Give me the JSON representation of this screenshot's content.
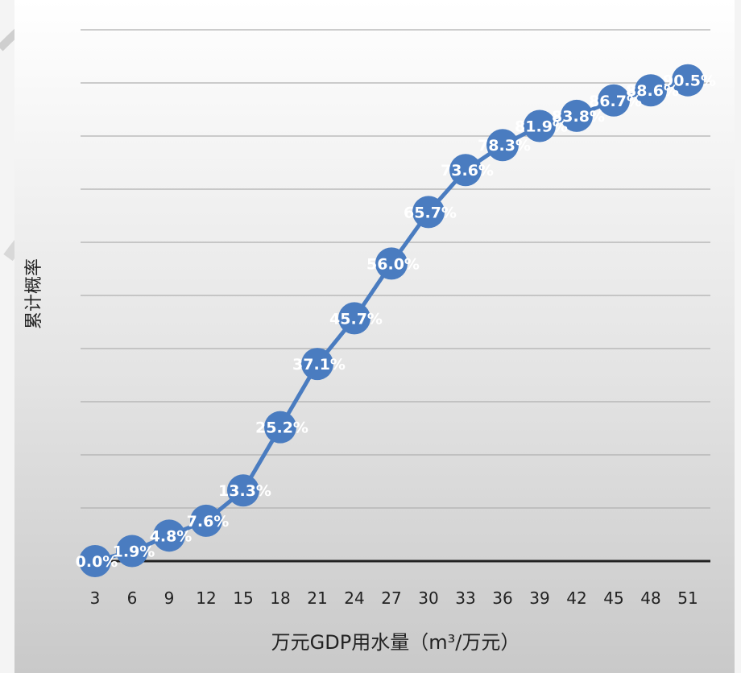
{
  "chart_data": {
    "type": "line",
    "ylabel": "累计概率",
    "xlabel": "万元GDP用水量（m³/万元）",
    "x": [
      3,
      6,
      9,
      12,
      15,
      18,
      21,
      24,
      27,
      30,
      33,
      36,
      39,
      42,
      45,
      48,
      51
    ],
    "x_tick_labels": [
      "3",
      "6",
      "9",
      "12",
      "15",
      "18",
      "21",
      "24",
      "27",
      "30",
      "33",
      "36",
      "39",
      "42",
      "45",
      "48",
      "51"
    ],
    "series": [
      {
        "values": [
          0.0,
          1.9,
          4.8,
          7.6,
          13.3,
          25.2,
          37.1,
          45.7,
          56.0,
          65.7,
          73.6,
          78.3,
          81.9,
          83.8,
          86.7,
          88.6,
          90.5
        ],
        "labels": [
          "0.0%",
          "1.9%",
          "4.8%",
          "7.6%",
          "13.3%",
          "25.2%",
          "37.1%",
          "45.7%",
          "56.0%",
          "65.7%",
          "73.6%",
          "78.3%",
          "81.9%",
          "83.8%",
          "86.7%",
          "88.6%",
          "90.5%"
        ],
        "color": "#4a7cc0"
      }
    ],
    "ylim": [
      0,
      100
    ],
    "y_gridlines": 10,
    "grid": true,
    "legend": "none"
  }
}
